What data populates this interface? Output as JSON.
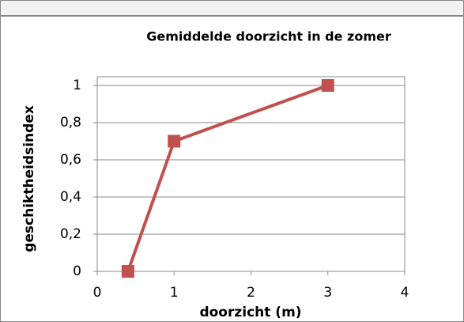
{
  "chart_data": {
    "type": "line",
    "title": "Gemiddelde doorzicht in de zomer",
    "x_label": "doorzicht (m)",
    "y_label": "geschiktheidsindex",
    "x": [
      0.4,
      1,
      3
    ],
    "series": [
      {
        "name": "geschiktheidsindex",
        "color": "#c0504d",
        "values": [
          0,
          0.7,
          1
        ]
      }
    ],
    "xlim": [
      0,
      4
    ],
    "xticks": [
      0,
      1,
      2,
      3,
      4
    ],
    "ylim": [
      0,
      1
    ],
    "yticks": [
      0,
      {
        "value": 0.2,
        "label": "0,2"
      },
      {
        "value": 0.4,
        "label": "0,4"
      },
      {
        "value": 0.6,
        "label": "0,6"
      },
      {
        "value": 0.8,
        "label": "0,8"
      },
      1
    ],
    "grid": true
  }
}
